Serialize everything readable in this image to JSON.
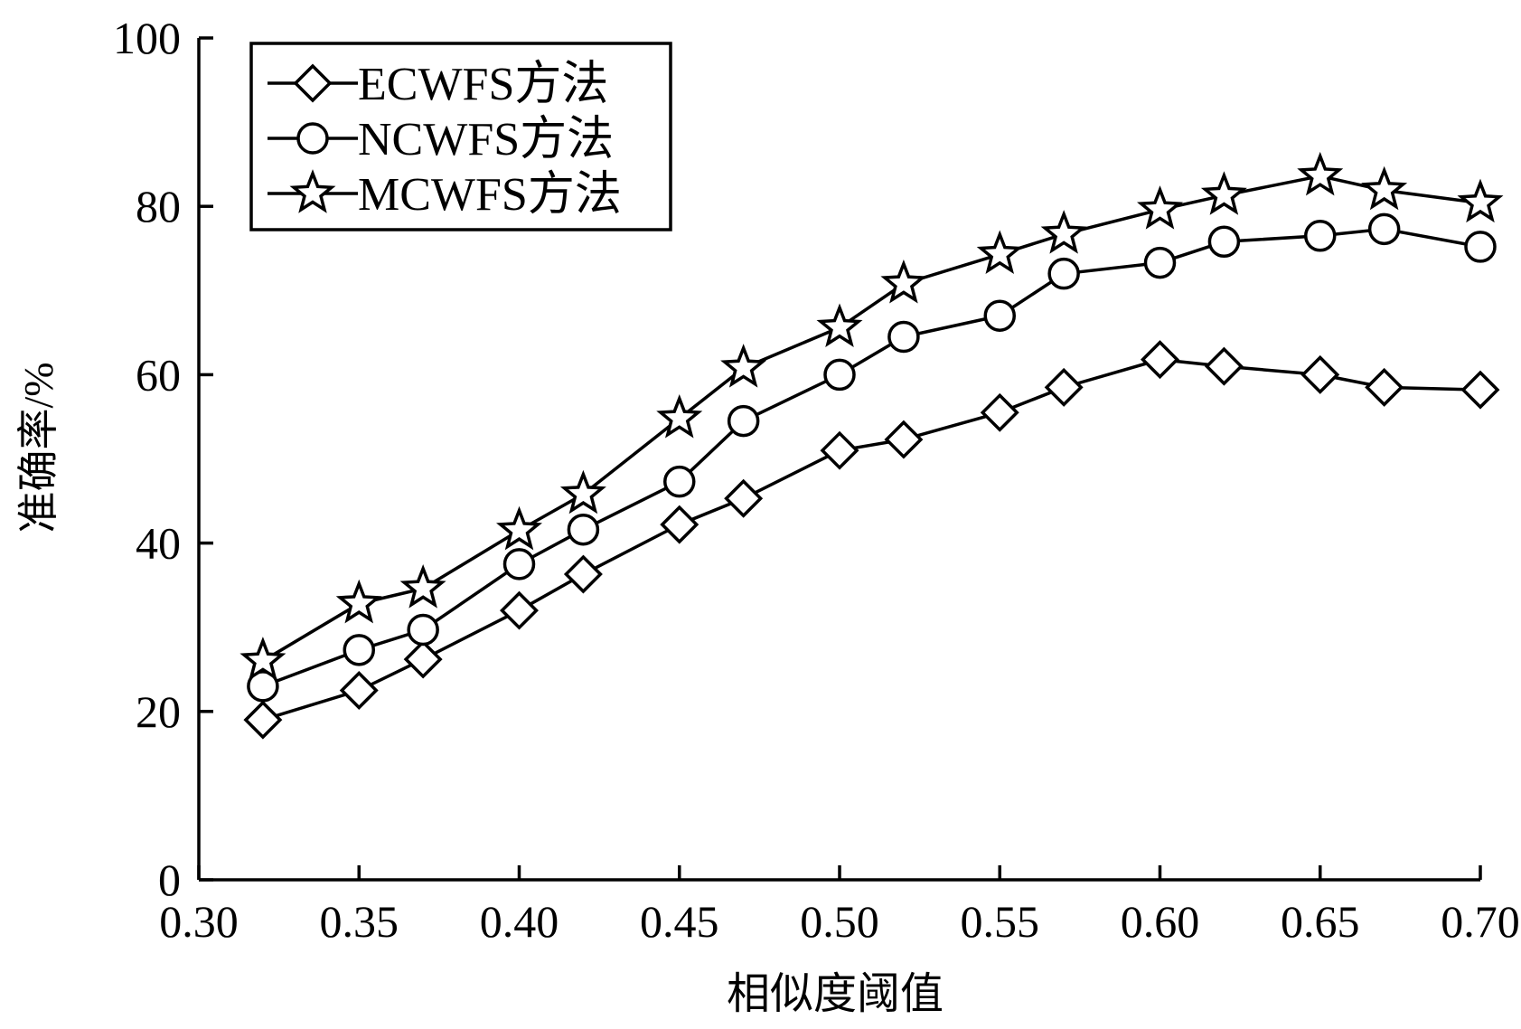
{
  "chart_data": {
    "type": "line",
    "xlabel": "相似度阈值",
    "ylabel": "准确率/%",
    "xlim": [
      0.3,
      0.7
    ],
    "ylim": [
      0,
      100
    ],
    "xticks": [
      "0.30",
      "0.35",
      "0.40",
      "0.45",
      "0.50",
      "0.55",
      "0.60",
      "0.65",
      "0.70"
    ],
    "yticks": [
      "0",
      "20",
      "40",
      "60",
      "80",
      "100"
    ],
    "grid": false,
    "legend_position": "top-left",
    "series": [
      {
        "name": "ECWFS方法",
        "marker": "diamond",
        "x": [
          0.32,
          0.35,
          0.37,
          0.4,
          0.42,
          0.45,
          0.47,
          0.5,
          0.52,
          0.55,
          0.57,
          0.6,
          0.62,
          0.65,
          0.67,
          0.7
        ],
        "y": [
          19.0,
          22.5,
          26.2,
          32.0,
          36.3,
          42.2,
          45.3,
          51.0,
          52.3,
          55.5,
          58.5,
          61.8,
          61.0,
          60.0,
          58.5,
          58.2
        ]
      },
      {
        "name": "NCWFS方法",
        "marker": "circle",
        "x": [
          0.32,
          0.35,
          0.37,
          0.4,
          0.42,
          0.45,
          0.47,
          0.5,
          0.52,
          0.55,
          0.57,
          0.6,
          0.62,
          0.65,
          0.67,
          0.7
        ],
        "y": [
          23.0,
          27.3,
          29.7,
          37.5,
          41.6,
          47.3,
          54.5,
          60.0,
          64.5,
          67.0,
          72.0,
          73.3,
          75.8,
          76.5,
          77.3,
          75.2
        ]
      },
      {
        "name": "MCWFS方法",
        "marker": "star",
        "x": [
          0.32,
          0.35,
          0.37,
          0.4,
          0.42,
          0.45,
          0.47,
          0.5,
          0.52,
          0.55,
          0.57,
          0.6,
          0.62,
          0.65,
          0.67,
          0.7
        ],
        "y": [
          26.0,
          32.8,
          34.6,
          41.5,
          45.8,
          54.8,
          60.8,
          65.6,
          70.8,
          74.3,
          76.7,
          79.6,
          81.3,
          83.6,
          81.9,
          80.4
        ]
      }
    ]
  }
}
